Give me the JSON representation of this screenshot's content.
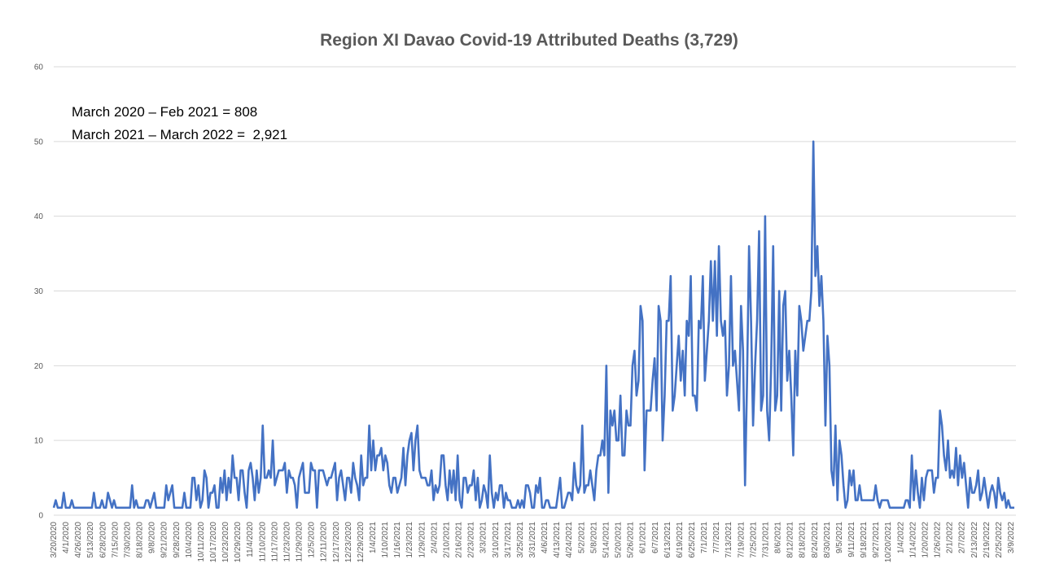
{
  "chart_data": {
    "type": "line",
    "title": "Region XI Davao Covid-19 Attributed Deaths (3,729)",
    "annotations": [
      "March 2020 – Feb 2021 = 808",
      "March 2021 – March 2022 =  2,921"
    ],
    "xlabel": "",
    "ylabel": "",
    "ylim": [
      0,
      60
    ],
    "yticks": [
      0,
      10,
      20,
      30,
      40,
      50,
      60
    ],
    "grid": true,
    "legend": "none",
    "line_color": "#4472c4",
    "x_start": "3/20/2020",
    "x_end": "3/15/2022",
    "x_tick_labels": [
      "3/20/2020",
      "4/1/2020",
      "4/26/2020",
      "5/13/2020",
      "6/28/2020",
      "7/15/2020",
      "7/30/2020",
      "8/18/2020",
      "9/8/2020",
      "9/21/2020",
      "9/28/2020",
      "10/4/2020",
      "10/11/2020",
      "10/17/2020",
      "10/23/2020",
      "10/29/2020",
      "11/4/2020",
      "11/10/2020",
      "11/17/2020",
      "11/23/2020",
      "11/29/2020",
      "12/5/2020",
      "12/11/2020",
      "12/17/2020",
      "12/23/2020",
      "12/29/2020",
      "1/4/2021",
      "1/10/2021",
      "1/16/2021",
      "1/23/2021",
      "1/29/2021",
      "2/4/2021",
      "2/10/2021",
      "2/16/2021",
      "2/23/2021",
      "3/3/2021",
      "3/10/2021",
      "3/17/2021",
      "3/25/2021",
      "3/31/2021",
      "4/6/2021",
      "4/13/2021",
      "4/24/2021",
      "5/2/2021",
      "5/8/2021",
      "5/14/2021",
      "5/20/2021",
      "5/26/2021",
      "6/1/2021",
      "6/7/2021",
      "6/13/2021",
      "6/19/2021",
      "6/25/2021",
      "7/1/2021",
      "7/7/2021",
      "7/13/2021",
      "7/19/2021",
      "7/25/2021",
      "7/31/2021",
      "8/6/2021",
      "8/12/2021",
      "8/18/2021",
      "8/24/2021",
      "8/30/2021",
      "9/5/2021",
      "9/11/2021",
      "9/18/2021",
      "9/27/2021",
      "10/20/2021",
      "1/4/2022",
      "1/14/2022",
      "1/20/2022",
      "1/26/2022",
      "2/1/2022",
      "2/7/2022",
      "2/13/2022",
      "2/19/2022",
      "2/25/2022",
      "3/9/2022"
    ],
    "values": [
      1,
      2,
      1,
      1,
      1,
      3,
      1,
      1,
      1,
      2,
      1,
      1,
      1,
      1,
      1,
      1,
      1,
      1,
      1,
      1,
      3,
      1,
      1,
      1,
      2,
      1,
      1,
      3,
      2,
      1,
      2,
      1,
      1,
      1,
      1,
      1,
      1,
      1,
      1,
      4,
      1,
      2,
      1,
      1,
      1,
      1,
      2,
      2,
      1,
      2,
      3,
      1,
      1,
      1,
      1,
      1,
      4,
      2,
      3,
      4,
      1,
      1,
      1,
      1,
      1,
      3,
      1,
      1,
      1,
      5,
      5,
      2,
      4,
      1,
      2,
      6,
      5,
      1,
      3,
      3,
      4,
      1,
      1,
      5,
      3,
      6,
      2,
      5,
      3,
      8,
      5,
      5,
      2,
      6,
      6,
      3,
      1,
      6,
      7,
      5,
      2,
      6,
      3,
      5,
      12,
      5,
      5,
      6,
      5,
      10,
      4,
      5,
      6,
      6,
      6,
      7,
      3,
      6,
      5,
      5,
      4,
      1,
      5,
      6,
      7,
      3,
      3,
      3,
      7,
      6,
      6,
      1,
      6,
      6,
      6,
      5,
      4,
      5,
      5,
      6,
      7,
      2,
      5,
      6,
      4,
      2,
      5,
      5,
      3,
      7,
      5,
      4,
      2,
      8,
      4,
      5,
      5,
      12,
      6,
      10,
      6,
      8,
      8,
      9,
      6,
      8,
      7,
      4,
      3,
      5,
      5,
      3,
      4,
      5,
      9,
      4,
      8,
      10,
      11,
      6,
      10,
      12,
      6,
      5,
      5,
      5,
      4,
      4,
      6,
      2,
      4,
      3,
      4,
      8,
      8,
      4,
      2,
      6,
      3,
      6,
      2,
      8,
      2,
      1,
      5,
      5,
      3,
      4,
      4,
      6,
      2,
      5,
      1,
      2,
      4,
      3,
      1,
      8,
      3,
      1,
      3,
      2,
      4,
      4,
      1,
      3,
      2,
      2,
      1,
      1,
      1,
      2,
      1,
      2,
      1,
      4,
      4,
      3,
      1,
      1,
      4,
      3,
      5,
      1,
      1,
      2,
      2,
      1,
      1,
      1,
      1,
      3,
      5,
      1,
      1,
      2,
      3,
      3,
      2,
      7,
      4,
      3,
      4,
      12,
      3,
      4,
      4,
      6,
      4,
      2,
      6,
      8,
      8,
      10,
      8,
      20,
      3,
      14,
      12,
      14,
      10,
      10,
      16,
      8,
      8,
      14,
      12,
      12,
      20,
      22,
      16,
      18,
      28,
      26,
      6,
      14,
      14,
      14,
      18,
      21,
      14,
      28,
      26,
      10,
      16,
      26,
      26,
      32,
      14,
      16,
      20,
      24,
      18,
      22,
      16,
      26,
      24,
      32,
      16,
      16,
      14,
      26,
      25,
      32,
      18,
      22,
      26,
      34,
      26,
      34,
      24,
      36,
      26,
      24,
      26,
      16,
      20,
      32,
      20,
      22,
      18,
      14,
      28,
      22,
      4,
      18,
      36,
      26,
      12,
      20,
      26,
      38,
      14,
      16,
      40,
      14,
      10,
      20,
      36,
      14,
      16,
      30,
      14,
      28,
      30,
      18,
      22,
      16,
      8,
      22,
      16,
      28,
      26,
      22,
      24,
      26,
      26,
      30,
      50,
      32,
      36,
      28,
      32,
      26,
      12,
      24,
      20,
      6,
      4,
      12,
      2,
      10,
      8,
      4,
      1,
      2,
      6,
      4,
      6,
      2,
      2,
      4,
      2,
      2,
      2,
      2,
      2,
      2,
      2,
      4,
      2,
      1,
      2,
      2,
      2,
      2,
      1,
      1,
      1,
      1,
      1,
      1,
      1,
      1,
      2,
      2,
      1,
      8,
      2,
      6,
      3,
      1,
      5,
      2,
      5,
      6,
      6,
      6,
      3,
      5,
      5,
      14,
      12,
      8,
      6,
      10,
      5,
      6,
      5,
      9,
      4,
      8,
      5,
      7,
      4,
      1,
      5,
      3,
      3,
      4,
      6,
      2,
      3,
      5,
      3,
      1,
      3,
      4,
      3,
      1,
      5,
      3,
      2,
      3,
      1,
      2,
      1,
      1,
      1
    ]
  }
}
